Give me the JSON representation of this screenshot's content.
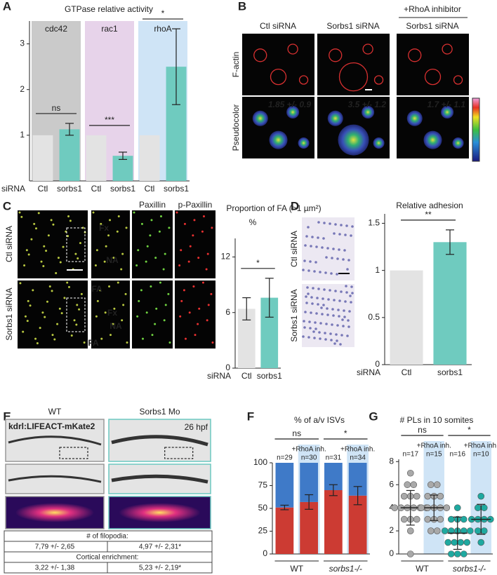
{
  "figure": {
    "B": {
      "label": "B",
      "header": "+RhoA inhibitor",
      "columns": [
        "Ctl siRNA",
        "Sorbs1 siRNA",
        "Sorbs1 siRNA"
      ],
      "rows": [
        "F-actin",
        "Pseudocolor"
      ],
      "measurements": [
        "1.85 +/- 0.9",
        "3.5 +/- 1.2",
        "1.7 +/- 1.1"
      ]
    },
    "C": {
      "label": "C",
      "rows": [
        "Ctl siRNA",
        "Sorbs1 siRNA"
      ],
      "columns": [
        "Paxillin",
        "p-Paxillin"
      ],
      "annotations": [
        "Fx",
        "NA",
        "FA"
      ]
    },
    "D": {
      "label": "D",
      "rows": [
        "Ctl siRNA",
        "Sorbs1 siRNA"
      ]
    },
    "E": {
      "label": "E",
      "columns": [
        "WT",
        "Sorbs1 Mo"
      ],
      "line": "kdrl:LIFEACT-mKate2",
      "stage": "26 hpf",
      "table": {
        "filopodia_header": "# of filopodia:",
        "filopodia": [
          "7,79 +/- 2,65",
          "4,97 +/- 2,31*"
        ],
        "cortical_header": "Cortical enrichment:",
        "cortical": [
          "3,22 +/- 1,38",
          "5,23 +/- 2,19*"
        ]
      }
    }
  },
  "chart_data": [
    {
      "label": "A",
      "type": "bar",
      "title": "GTPase relative activity",
      "x_label": "siRNA",
      "categories": [
        "Ctl",
        "sorbs1",
        "Ctl",
        "sorbs1",
        "Ctl",
        "sorbs1"
      ],
      "values": [
        1,
        1.13,
        1,
        0.55,
        1,
        2.5
      ],
      "errors": [
        null,
        0.13,
        null,
        0.08,
        null,
        0.83
      ],
      "colors": [
        "#e3e3e3",
        "#6fcbbf",
        "#e3e3e3",
        "#6fcbbf",
        "#e3e3e3",
        "#6fcbbf"
      ],
      "groups": [
        {
          "name": "cdc42",
          "color": "#555555",
          "background": "#cacaca",
          "significance": "ns"
        },
        {
          "name": "rac1",
          "color": "#7b2d80",
          "background": "#e7d3ea",
          "significance": "***"
        },
        {
          "name": "rhoA",
          "color": "#3b7bbf",
          "background": "#cfe4f6",
          "significance": "*"
        }
      ],
      "ylim": [
        0,
        3.5
      ],
      "yticks": [
        1,
        2,
        3
      ]
    },
    {
      "type": "bar",
      "title": "Proportion of FA (>1 µm²)",
      "y_label": "%",
      "x_label": "siRNA",
      "categories": [
        "Ctl",
        "sorbs1"
      ],
      "values": [
        6.4,
        7.6
      ],
      "errors": [
        1.2,
        2.1
      ],
      "colors": [
        "#e3e3e3",
        "#6fcbbf"
      ],
      "significance": "*",
      "ylim": [
        0,
        14
      ],
      "yticks": [
        0,
        6,
        12
      ]
    },
    {
      "type": "bar",
      "title": "Relative adhesion",
      "x_label": "siRNA",
      "categories": [
        "Ctl",
        "sorbs1"
      ],
      "values": [
        1,
        1.3
      ],
      "errors": [
        null,
        0.13
      ],
      "colors": [
        "#e3e3e3",
        "#6fcbbf"
      ],
      "significance": "**",
      "ylim": [
        0,
        1.6
      ],
      "yticks": [
        0,
        0.5,
        1,
        1.5
      ]
    },
    {
      "label": "F",
      "type": "stacked_bar",
      "title": "% of a/v ISVs",
      "series": [
        {
          "color": "#cc3b33",
          "values": [
            51,
            57,
            70,
            64
          ],
          "errors": [
            2.5,
            8,
            6,
            10
          ]
        },
        {
          "color": "#3f7ac8",
          "values": [
            49,
            43,
            30,
            36
          ]
        }
      ],
      "n_labels": [
        "n=29",
        "n=30",
        "n=31",
        "n=34"
      ],
      "treatment_labels": [
        null,
        "+RhoA inh.",
        null,
        "+RhoA inh."
      ],
      "shaded": [
        false,
        true,
        false,
        true
      ],
      "groups": [
        {
          "name": "WT",
          "italic": false,
          "significance": "ns"
        },
        {
          "name": "sorbs1-/-",
          "italic": true,
          "significance": "*"
        }
      ],
      "ylim": [
        0,
        100
      ],
      "yticks": [
        0,
        25,
        50,
        75,
        100
      ]
    },
    {
      "label": "G",
      "type": "dot",
      "title": "# PLs in 10 somites",
      "points": [
        [
          0,
          2,
          3,
          3,
          3,
          4,
          4,
          4,
          4,
          4,
          4,
          5,
          5,
          5,
          6,
          6,
          7
        ],
        [
          2,
          2,
          3,
          3,
          3,
          4,
          4,
          4,
          4,
          4,
          5,
          5,
          5,
          6,
          6
        ],
        [
          0,
          0,
          0,
          1,
          1,
          1,
          1,
          2,
          2,
          2,
          2,
          2,
          3,
          3,
          3,
          4
        ],
        [
          1,
          2,
          2,
          3,
          3,
          3,
          3,
          4,
          4,
          5
        ]
      ],
      "means": [
        4.0,
        4.0,
        1.8,
        3.0
      ],
      "sd": [
        1.5,
        1.1,
        1.4,
        1.3
      ],
      "colors": [
        "#a9a9a9",
        "#a9a9a9",
        "#1fa9a0",
        "#1fa9a0"
      ],
      "n_labels": [
        "n=17",
        "n=15",
        "n=16",
        "n=10"
      ],
      "treatment_labels": [
        null,
        "+RhoA inh.",
        null,
        "+RhoA inh."
      ],
      "shaded": [
        false,
        true,
        false,
        true
      ],
      "groups": [
        {
          "name": "WT",
          "italic": false,
          "significance": "ns"
        },
        {
          "name": "sorbs1-/-",
          "italic": true,
          "significance": "*"
        }
      ],
      "ylim": [
        0,
        8.2
      ],
      "yticks": [
        0,
        2,
        4,
        6,
        8
      ]
    }
  ]
}
